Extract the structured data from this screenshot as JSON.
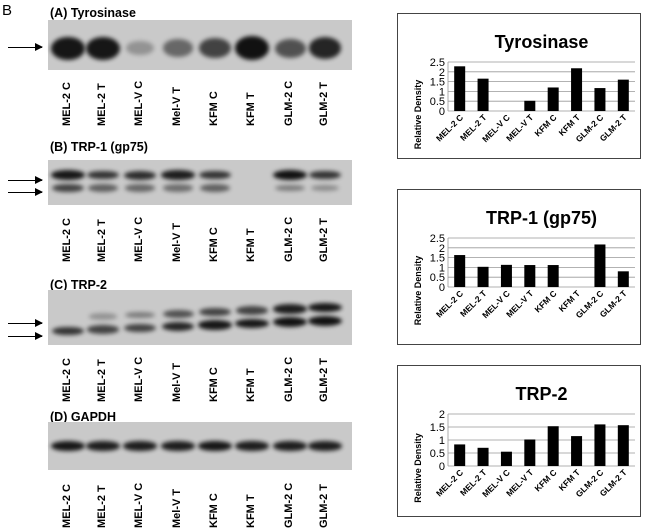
{
  "figure_letter": "B",
  "lanes": [
    "MEL-2 C",
    "MEL-2 T",
    "MEL-V C",
    "Mel-V T",
    "KFM C",
    "KFM T",
    "GLM-2 C",
    "GLM-2 T"
  ],
  "blots": [
    {
      "title": "(A) Tyrosinase",
      "arrows": 1,
      "bands": [
        [
          0.9,
          0.9,
          0.05,
          0.35,
          0.6,
          1.0,
          0.5,
          0.8
        ]
      ]
    },
    {
      "title": "(B) TRP-1 (gp75)",
      "arrows": 2,
      "bands": [
        [
          0.9,
          0.7,
          0.75,
          0.85,
          0.7,
          0.0,
          1.0,
          0.7
        ],
        [
          0.6,
          0.4,
          0.35,
          0.3,
          0.4,
          0.0,
          0.2,
          0.1
        ]
      ]
    },
    {
      "title": "(C) TRP-2",
      "arrows": 2,
      "bands": [
        [
          0.0,
          0.05,
          0.2,
          0.5,
          0.6,
          0.6,
          0.85,
          0.9
        ],
        [
          0.7,
          0.6,
          0.6,
          0.8,
          0.9,
          0.9,
          1.0,
          1.0
        ]
      ]
    },
    {
      "title": "(D) GAPDH",
      "arrows": 0,
      "bands": [
        [
          0.9,
          0.85,
          0.85,
          0.85,
          0.9,
          0.85,
          0.85,
          0.85
        ]
      ]
    }
  ],
  "chart_data": [
    {
      "type": "bar",
      "title": "Tyrosinase",
      "ylabel": "Relative Density",
      "xlabel": "",
      "categories": [
        "MEL-2 C",
        "MEL-2 T",
        "MEL-V C",
        "MEL-V T",
        "KFM C",
        "KFM T",
        "GLM-2 C",
        "GLM-2 T"
      ],
      "values": [
        2.28,
        1.65,
        0,
        0.52,
        1.2,
        2.18,
        1.17,
        1.6
      ],
      "ylim": [
        0,
        2.5
      ],
      "yticks": [
        "0",
        "0.5",
        "1",
        "1.5",
        "2",
        "2.5"
      ],
      "grid": true
    },
    {
      "type": "bar",
      "title": "TRP-1 (gp75)",
      "ylabel": "Relative Density",
      "xlabel": "",
      "categories": [
        "MEL-2 C",
        "MEL-2 T",
        "MEL-V C",
        "MEL-V T",
        "KFM C",
        "KFM T",
        "GLM-2 C",
        "GLM-2 T"
      ],
      "values": [
        1.63,
        1.03,
        1.13,
        1.12,
        1.12,
        0,
        2.17,
        0.8
      ],
      "ylim": [
        0,
        2.5
      ],
      "yticks": [
        "0",
        "0.5",
        "1",
        "1.5",
        "2",
        "2.5"
      ],
      "grid": true
    },
    {
      "type": "bar",
      "title": "TRP-2",
      "ylabel": "Relative Density",
      "xlabel": "",
      "categories": [
        "MEL-2 C",
        "MEL-2 T",
        "MEL-V C",
        "MEL-V T",
        "KFM C",
        "KFM T",
        "GLM-2 C",
        "GLM-2 T"
      ],
      "values": [
        0.83,
        0.7,
        0.55,
        1.02,
        1.53,
        1.15,
        1.6,
        1.57
      ],
      "ylim": [
        0,
        2
      ],
      "yticks": [
        "0",
        "0.5",
        "1",
        "1.5",
        "2"
      ],
      "grid": true
    }
  ]
}
